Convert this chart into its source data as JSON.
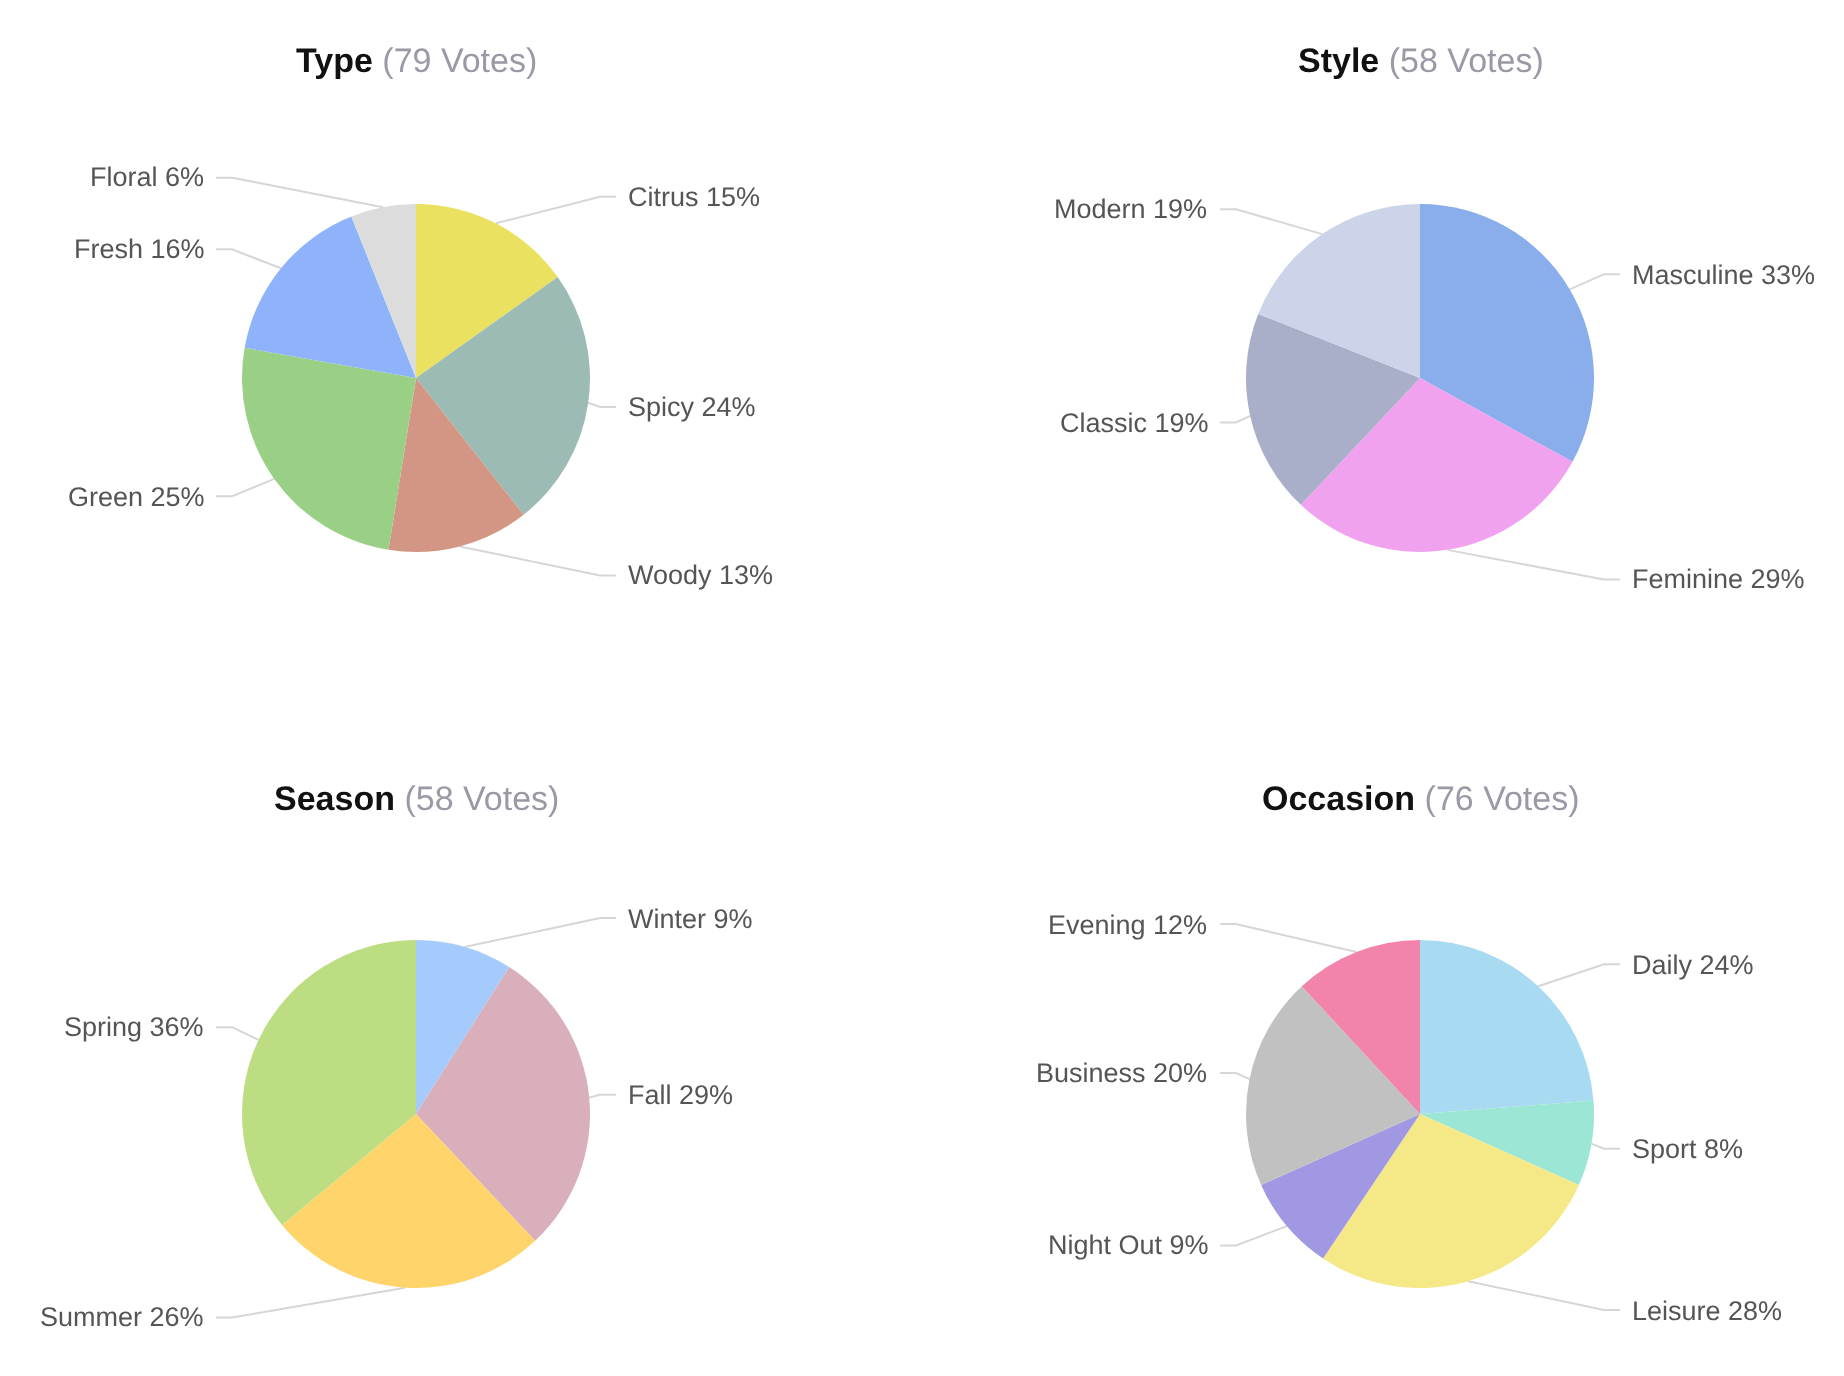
{
  "chart_data": [
    {
      "type": "pie",
      "title": "Type",
      "subtitle": "(79 Votes)",
      "categories": [
        "Citrus",
        "Spicy",
        "Woody",
        "Green",
        "Fresh",
        "Floral"
      ],
      "values": [
        15,
        24,
        13,
        25,
        16,
        6
      ],
      "value_labels": [
        "15%",
        "24%",
        "13%",
        "25%",
        "16%",
        "6%"
      ],
      "colors": [
        "#e9e15f",
        "#9dbbb5",
        "#d49684",
        "#99d086",
        "#8fb3fa",
        "#dcdcdc"
      ]
    },
    {
      "type": "pie",
      "title": "Style",
      "subtitle": "(58 Votes)",
      "categories": [
        "Masculine",
        "Feminine",
        "Classic",
        "Modern"
      ],
      "values": [
        33,
        29,
        19,
        19
      ],
      "value_labels": [
        "33%",
        "29%",
        "19%",
        "19%"
      ],
      "colors": [
        "#8aaeec",
        "#f0a2ef",
        "#a9afc8",
        "#cbd4e8"
      ]
    },
    {
      "type": "pie",
      "title": "Season",
      "subtitle": "(58 Votes)",
      "categories": [
        "Winter",
        "Fall",
        "Summer",
        "Spring"
      ],
      "values": [
        9,
        29,
        26,
        36
      ],
      "value_labels": [
        "9%",
        "29%",
        "26%",
        "36%"
      ],
      "colors": [
        "#a5cafc",
        "#d9afbc",
        "#ffd46a",
        "#bcdd82"
      ]
    },
    {
      "type": "pie",
      "title": "Occasion",
      "subtitle": "(76 Votes)",
      "categories": [
        "Daily",
        "Sport",
        "Leisure",
        "Night Out",
        "Business",
        "Evening"
      ],
      "values": [
        24,
        8,
        28,
        9,
        20,
        12
      ],
      "value_labels": [
        "24%",
        "8%",
        "28%",
        "9%",
        "20%",
        "12%"
      ],
      "colors": [
        "#a8dbf1",
        "#9be6d4",
        "#f5e887",
        "#a198e4",
        "#c1c1c1",
        "#f283aa"
      ]
    }
  ]
}
